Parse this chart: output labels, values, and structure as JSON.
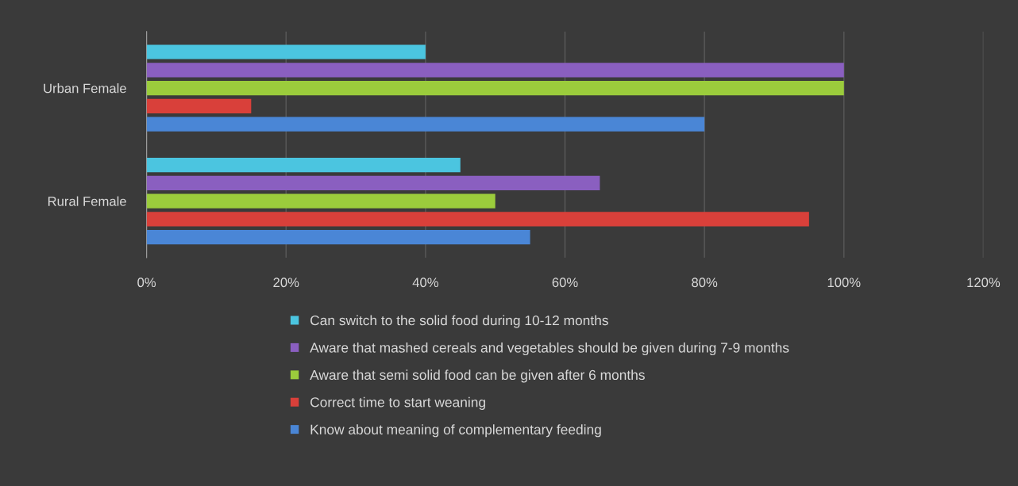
{
  "chart_data": {
    "type": "bar",
    "orientation": "horizontal",
    "categories": [
      "Urban Female",
      "Rural Female"
    ],
    "series": [
      {
        "name": "Can switch to the solid food during 10-12 months",
        "color": "#4bc5e0",
        "values": [
          40,
          45
        ]
      },
      {
        "name": "Aware that mashed cereals and vegetables should be given during 7-9 months",
        "color": "#8a5fc0",
        "values": [
          100,
          65
        ]
      },
      {
        "name": "Aware that semi solid food can be given after 6 months",
        "color": "#9bcc3c",
        "values": [
          100,
          50
        ]
      },
      {
        "name": "Correct time to start weaning",
        "color": "#d9403a",
        "values": [
          15,
          95
        ]
      },
      {
        "name": "Know about meaning of complementary feeding",
        "color": "#4a86d6",
        "values": [
          80,
          55
        ]
      }
    ],
    "xlim": [
      0,
      120
    ],
    "xticks": [
      {
        "value": 0,
        "label": "0%"
      },
      {
        "value": 20,
        "label": "20%"
      },
      {
        "value": 40,
        "label": "40%"
      },
      {
        "value": 60,
        "label": "60%"
      },
      {
        "value": 80,
        "label": "80%"
      },
      {
        "value": 100,
        "label": "100%"
      },
      {
        "value": 120,
        "label": "120%"
      }
    ],
    "grid": "x",
    "legend": "bottom"
  }
}
